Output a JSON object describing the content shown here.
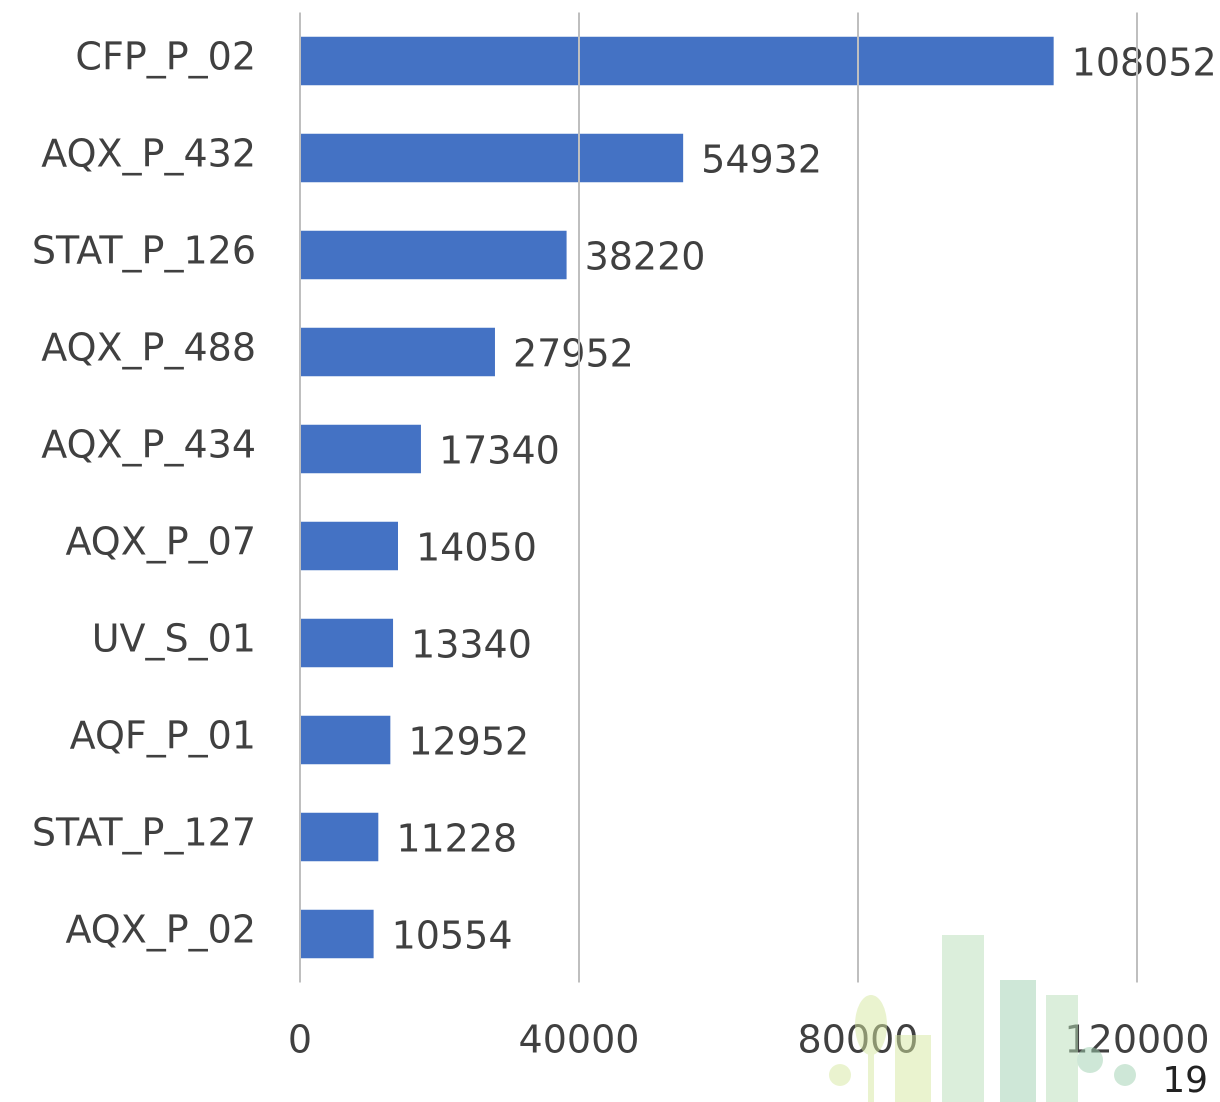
{
  "chart_data": {
    "type": "hbar",
    "categories": [
      "CFP_P_02",
      "AQX_P_432",
      "STAT_P_126",
      "AQX_P_488",
      "AQX_P_434",
      "AQX_P_07",
      "UV_S_01",
      "AQF_P_01",
      "STAT_P_127",
      "AQX_P_02"
    ],
    "values": [
      108052,
      54932,
      38220,
      27952,
      17340,
      14050,
      13340,
      12952,
      11228,
      10554
    ],
    "color": "#4472c4",
    "xlim": [
      0,
      120000
    ],
    "xticks": [
      0,
      40000,
      80000,
      120000
    ],
    "grid": true
  },
  "page_number": "19"
}
